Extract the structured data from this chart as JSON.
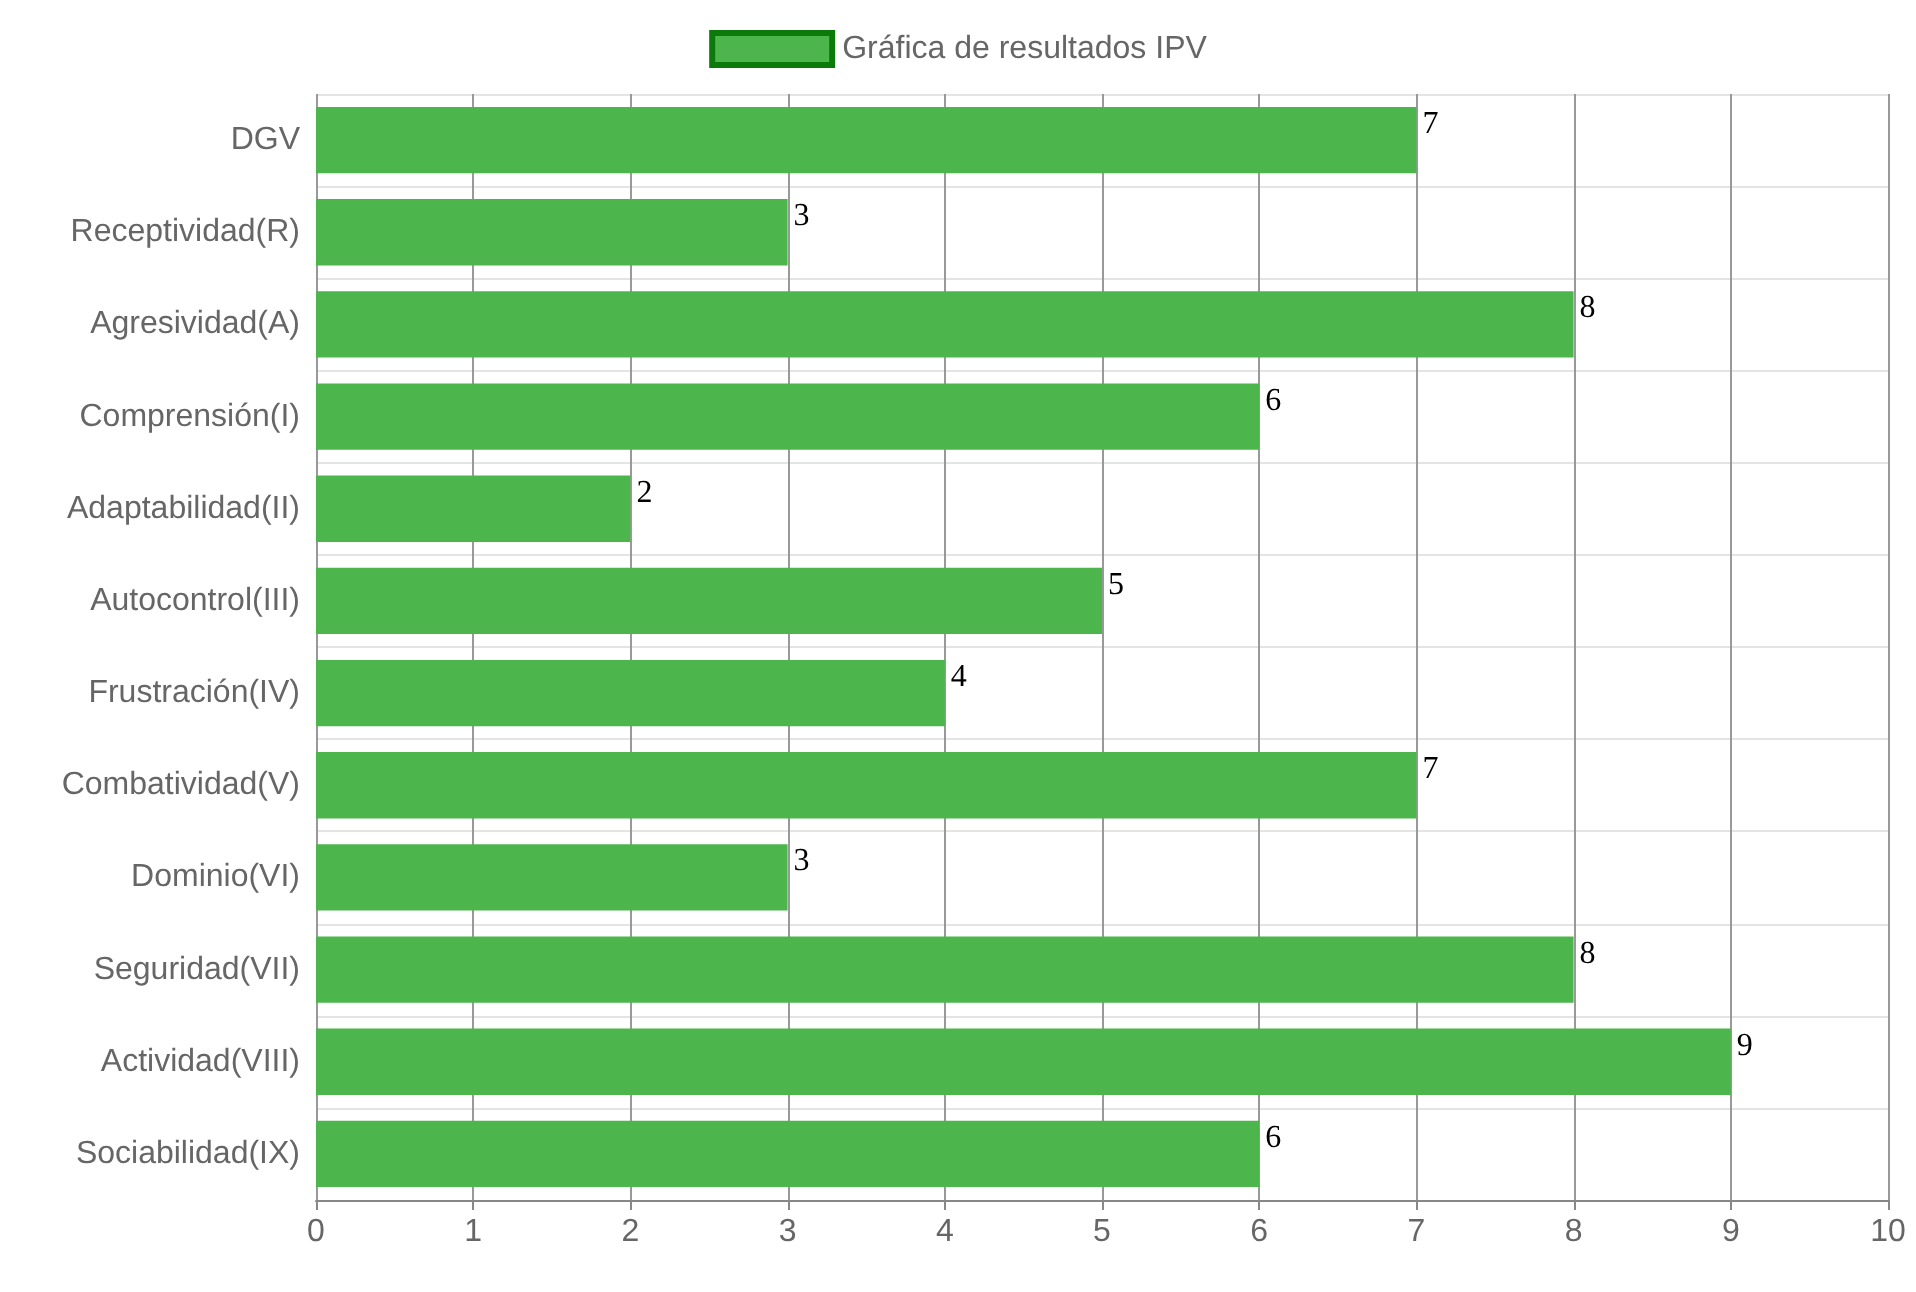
{
  "chart_data": {
    "type": "bar",
    "orientation": "horizontal",
    "categories": [
      "DGV",
      "Receptividad(R)",
      "Agresividad(A)",
      "Comprensión(I)",
      "Adaptabilidad(II)",
      "Autocontrol(III)",
      "Frustración(IV)",
      "Combatividad(V)",
      "Dominio(VI)",
      "Seguridad(VII)",
      "Actividad(VIII)",
      "Sociabilidad(IX)"
    ],
    "series": [
      {
        "name": "Gráfica de resultados IPV",
        "color": "#4cb54c",
        "values": [
          7,
          3,
          8,
          6,
          2,
          5,
          4,
          7,
          3,
          8,
          9,
          6
        ]
      }
    ],
    "xlim": [
      0,
      10
    ],
    "xticks": [
      0,
      1,
      2,
      3,
      4,
      5,
      6,
      7,
      8,
      9,
      10
    ],
    "grid": true,
    "legend": "top",
    "data_labels": true
  }
}
